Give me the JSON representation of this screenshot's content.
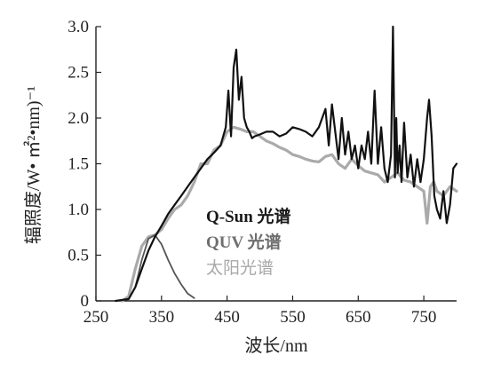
{
  "chart_data": {
    "type": "line",
    "xlabel": "波长/nm",
    "ylabel": "辐照度/W• ㎡²•nm)⁻¹",
    "xlim": [
      250,
      800
    ],
    "ylim": [
      0,
      3.0
    ],
    "x_ticks": [
      "250",
      "350",
      "450",
      "550",
      "650",
      "750"
    ],
    "y_ticks": [
      "0",
      "0.5",
      "1.0",
      "1.5",
      "2.0",
      "2.5",
      "3.0"
    ],
    "grid": false,
    "legend_position": "center-left",
    "legend": [
      {
        "label": "Q-Sun 光谱",
        "color": "#1a1a1a",
        "bold": true
      },
      {
        "label": "QUV 光谱",
        "color": "#6e6e6e",
        "bold": true
      },
      {
        "label": "太阳光谱",
        "color": "#a8a8a8",
        "bold": false
      }
    ],
    "series": [
      {
        "name": "Q-Sun 光谱",
        "color": "#111111",
        "width": 2.2,
        "x": [
          280,
          300,
          310,
          320,
          330,
          340,
          350,
          360,
          370,
          380,
          390,
          400,
          410,
          420,
          430,
          440,
          448,
          452,
          456,
          460,
          464,
          468,
          472,
          476,
          480,
          484,
          488,
          492,
          500,
          510,
          520,
          530,
          540,
          550,
          560,
          570,
          580,
          590,
          600,
          605,
          610,
          615,
          620,
          625,
          630,
          635,
          640,
          645,
          650,
          655,
          660,
          665,
          670,
          675,
          680,
          685,
          690,
          695,
          700,
          703,
          706,
          708,
          710,
          713,
          716,
          720,
          725,
          730,
          735,
          740,
          745,
          750,
          755,
          758,
          762,
          766,
          770,
          775,
          780,
          785,
          790,
          795,
          800
        ],
        "y": [
          0.0,
          0.02,
          0.15,
          0.35,
          0.55,
          0.7,
          0.82,
          0.95,
          1.05,
          1.15,
          1.25,
          1.35,
          1.45,
          1.55,
          1.62,
          1.7,
          1.9,
          2.3,
          1.8,
          2.55,
          2.75,
          2.2,
          2.45,
          2.0,
          1.9,
          1.85,
          1.78,
          1.8,
          1.82,
          1.85,
          1.85,
          1.8,
          1.83,
          1.9,
          1.88,
          1.85,
          1.8,
          1.9,
          2.1,
          1.7,
          2.15,
          1.85,
          1.55,
          2.0,
          1.6,
          1.85,
          1.55,
          1.7,
          1.45,
          1.7,
          1.55,
          1.85,
          1.5,
          2.3,
          1.5,
          1.9,
          1.45,
          1.3,
          1.6,
          3.0,
          1.35,
          2.0,
          1.4,
          1.7,
          1.3,
          1.95,
          1.35,
          1.6,
          1.25,
          1.55,
          1.3,
          1.55,
          2.0,
          2.2,
          1.8,
          1.15,
          1.0,
          0.9,
          1.2,
          0.85,
          1.05,
          1.45,
          1.5
        ]
      },
      {
        "name": "QUV 光谱",
        "color": "#555555",
        "width": 1.8,
        "x": [
          300,
          310,
          320,
          330,
          340,
          350,
          360,
          370,
          380,
          390,
          400
        ],
        "y": [
          0.02,
          0.15,
          0.45,
          0.68,
          0.72,
          0.62,
          0.45,
          0.3,
          0.18,
          0.08,
          0.03
        ]
      },
      {
        "name": "太阳光谱",
        "color": "#aaaaaa",
        "width": 3.2,
        "x": [
          290,
          300,
          310,
          320,
          330,
          340,
          350,
          360,
          370,
          380,
          390,
          400,
          410,
          420,
          430,
          440,
          450,
          460,
          470,
          480,
          490,
          500,
          510,
          520,
          530,
          540,
          550,
          560,
          570,
          580,
          590,
          600,
          610,
          620,
          630,
          640,
          650,
          660,
          670,
          680,
          690,
          700,
          710,
          720,
          730,
          740,
          750,
          755,
          760,
          765,
          770,
          780,
          790,
          800
        ],
        "y": [
          0.0,
          0.05,
          0.35,
          0.6,
          0.7,
          0.72,
          0.78,
          0.9,
          1.0,
          1.05,
          1.15,
          1.3,
          1.5,
          1.5,
          1.65,
          1.7,
          1.85,
          1.9,
          1.88,
          1.85,
          1.85,
          1.8,
          1.75,
          1.72,
          1.68,
          1.65,
          1.6,
          1.58,
          1.55,
          1.53,
          1.52,
          1.58,
          1.6,
          1.5,
          1.45,
          1.55,
          1.48,
          1.42,
          1.4,
          1.38,
          1.3,
          1.35,
          1.4,
          1.32,
          1.3,
          1.25,
          1.2,
          0.85,
          1.25,
          1.3,
          1.2,
          1.15,
          1.25,
          1.2
        ]
      }
    ]
  }
}
